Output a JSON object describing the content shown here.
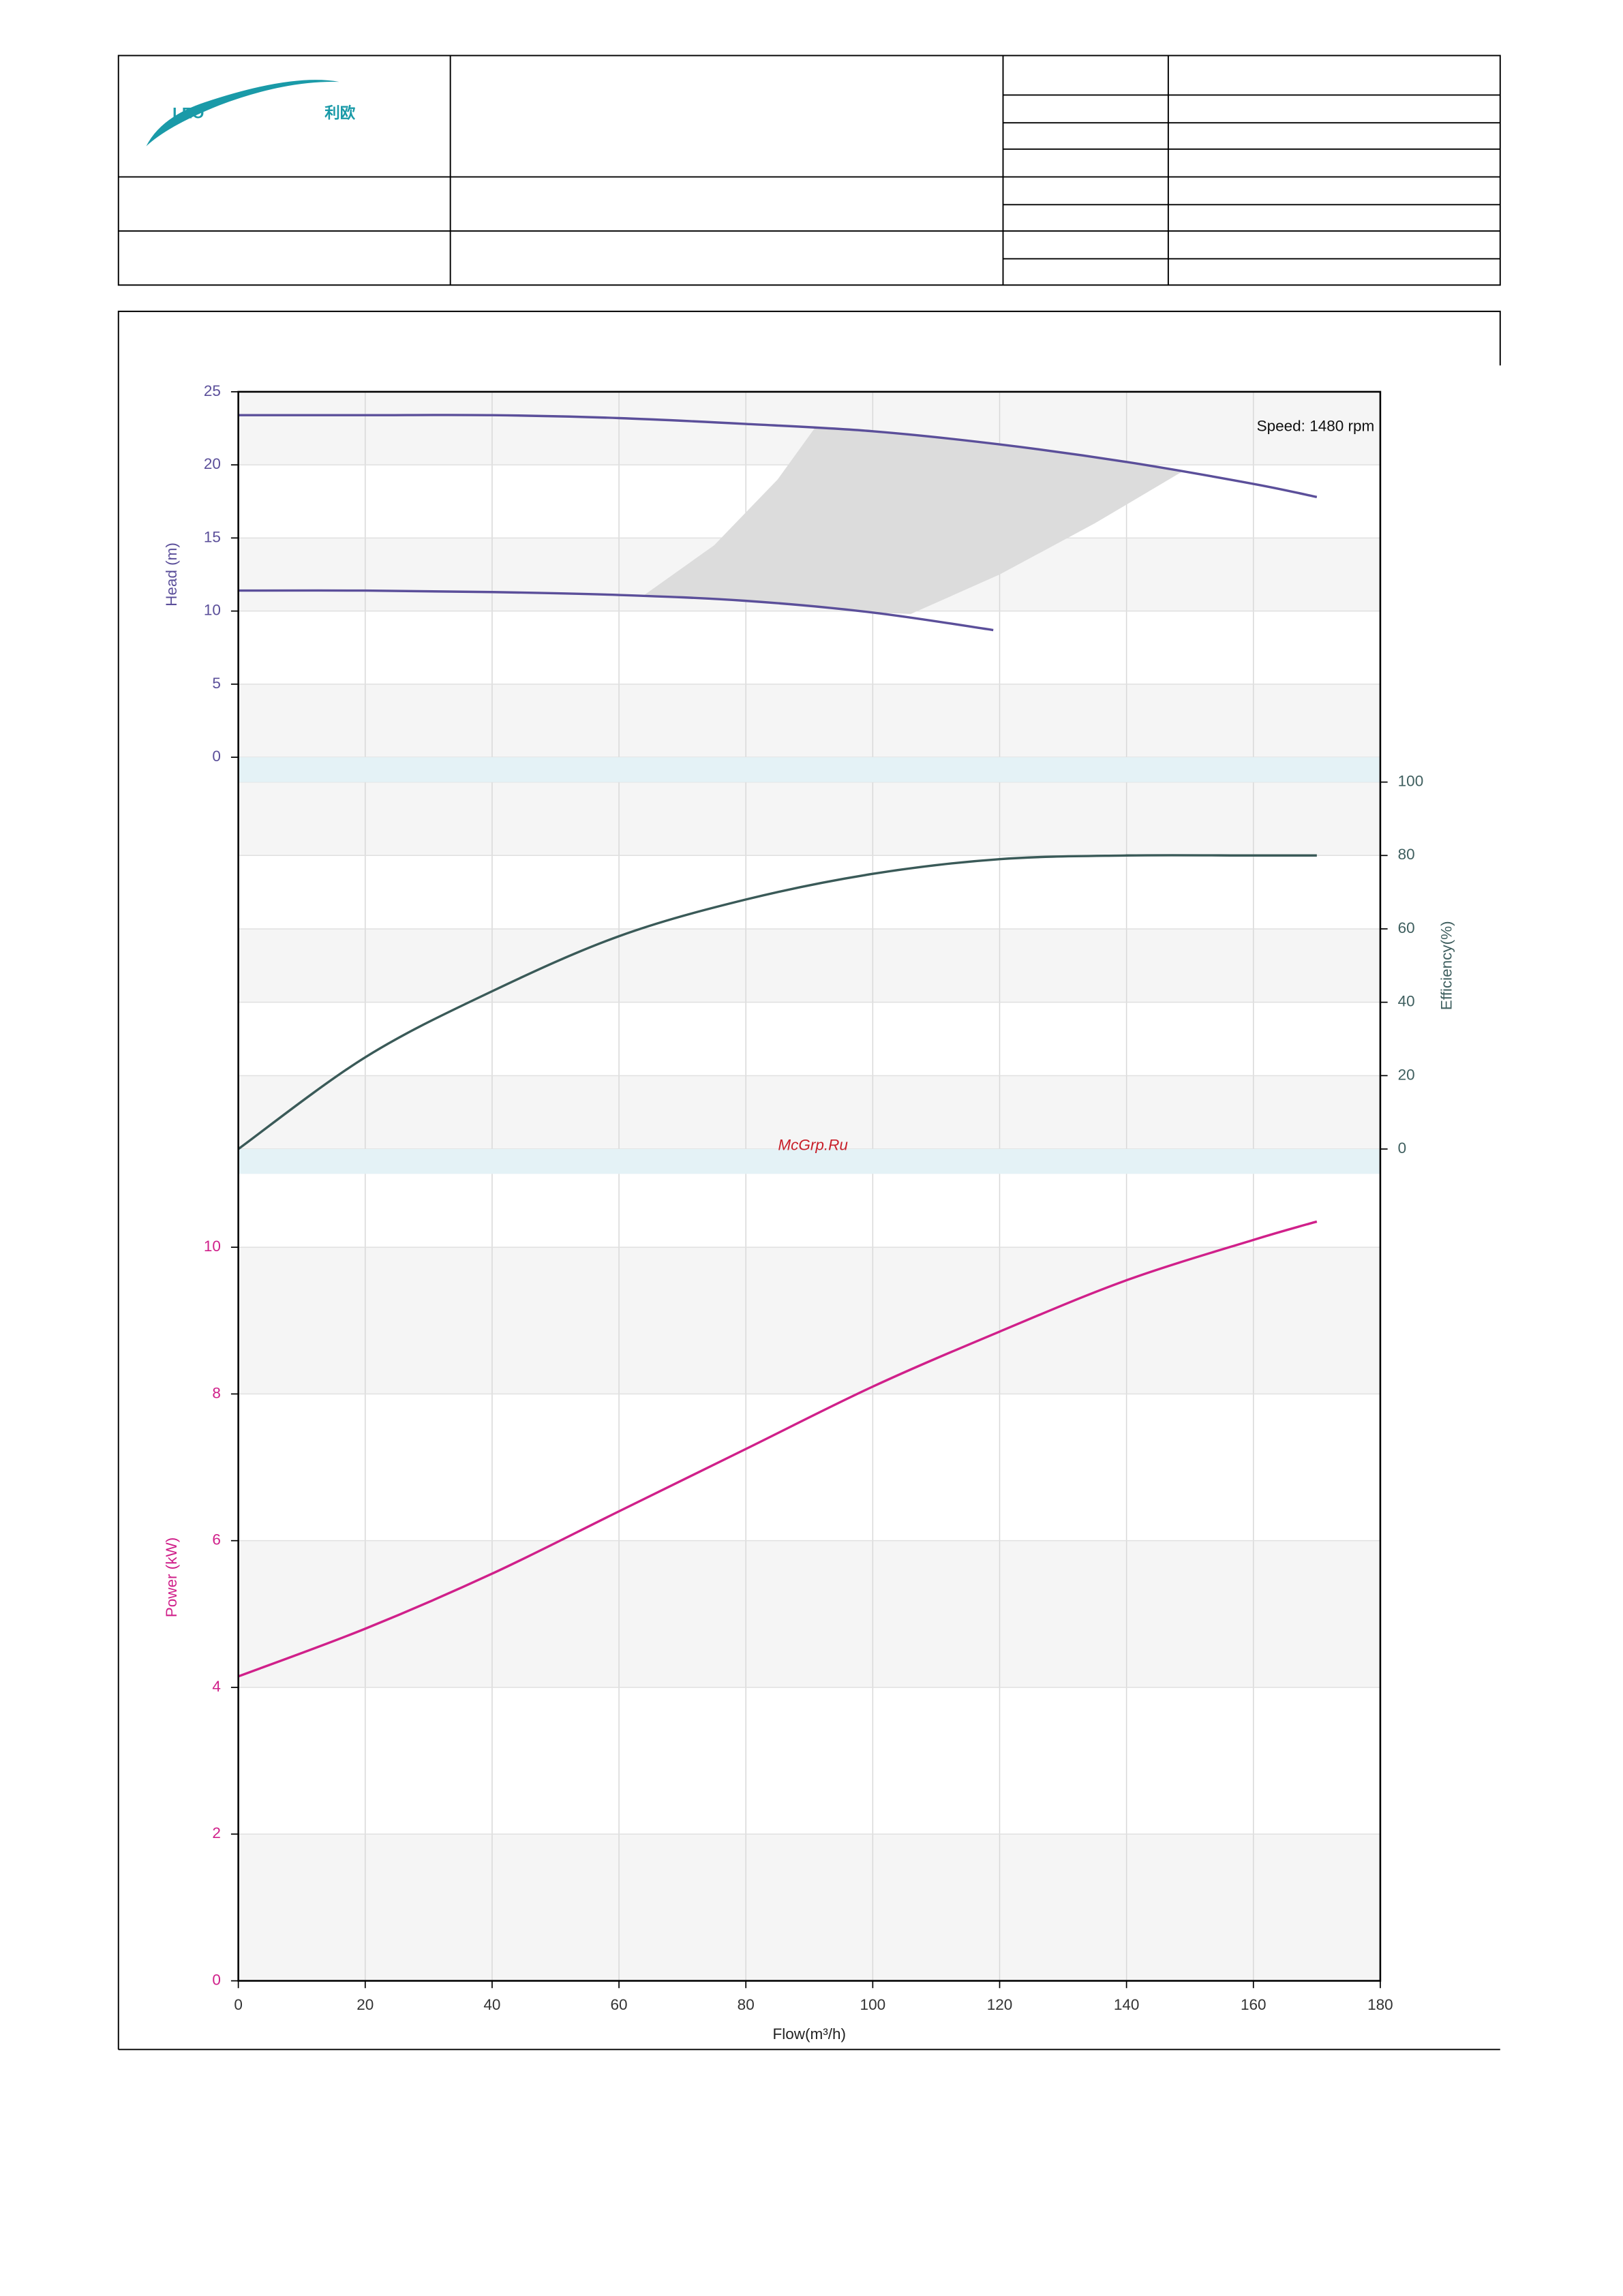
{
  "header": {
    "logo": {
      "mark": "LEO",
      "text": "利欧"
    }
  },
  "watermark": "McGrp.Ru",
  "chart_data": [
    {
      "type": "line",
      "y_label": "Head (m)",
      "y_side": "left",
      "annotation": "Speed: 1480 rpm",
      "xlim": [
        0,
        180
      ],
      "ylim": [
        0,
        25
      ],
      "yticks": [
        0,
        5,
        10,
        15,
        20,
        25
      ],
      "grid": true,
      "label_color": "#5b4f9a",
      "series": [
        {
          "color": "#5b4f9a",
          "x": [
            0,
            20,
            40,
            60,
            80,
            100,
            120,
            140,
            160,
            170
          ],
          "values": [
            23.4,
            23.4,
            23.4,
            23.2,
            22.8,
            22.3,
            21.4,
            20.2,
            18.7,
            17.8
          ]
        },
        {
          "color": "#5b4f9a",
          "x": [
            0,
            20,
            40,
            60,
            80,
            100,
            119
          ],
          "values": [
            11.4,
            11.4,
            11.3,
            11.1,
            10.7,
            9.9,
            8.7
          ]
        }
      ],
      "region": {
        "color": "#dcdcdc",
        "x": [
          64,
          75,
          85,
          91,
          100,
          120,
          140,
          149,
          135,
          120,
          106,
          100,
          80
        ],
        "values": [
          11.1,
          14.5,
          19,
          22.6,
          22.3,
          21.4,
          20.2,
          19.6,
          16,
          12.5,
          9.8,
          9.9,
          10.7
        ]
      }
    },
    {
      "type": "line",
      "y_label": "Efficiency(%)",
      "y_side": "right",
      "xlim": [
        0,
        180
      ],
      "ylim": [
        0,
        100
      ],
      "yticks": [
        0,
        20,
        40,
        60,
        80,
        100
      ],
      "grid": true,
      "label_color": "#3f5f5f",
      "series": [
        {
          "color": "#3a5a58",
          "x": [
            0,
            20,
            40,
            60,
            80,
            100,
            120,
            140,
            160,
            170
          ],
          "values": [
            0,
            25,
            43,
            58,
            68,
            75,
            79,
            80,
            80,
            80
          ]
        }
      ]
    },
    {
      "type": "line",
      "y_label": "Power (kW)",
      "y_side": "left",
      "x_label": "Flow(m³/h)",
      "xlim": [
        0,
        180
      ],
      "xticks": [
        0,
        20,
        40,
        60,
        80,
        100,
        120,
        140,
        160,
        180
      ],
      "ylim": [
        0,
        11
      ],
      "yticks": [
        0,
        2,
        4,
        6,
        8,
        10
      ],
      "grid": true,
      "label_color": "#d0208a",
      "series": [
        {
          "color": "#d0208a",
          "x": [
            0,
            20,
            40,
            60,
            80,
            100,
            120,
            140,
            160,
            170
          ],
          "values": [
            4.15,
            4.8,
            5.55,
            6.4,
            7.25,
            8.1,
            8.85,
            9.55,
            10.1,
            10.35
          ]
        }
      ]
    }
  ]
}
